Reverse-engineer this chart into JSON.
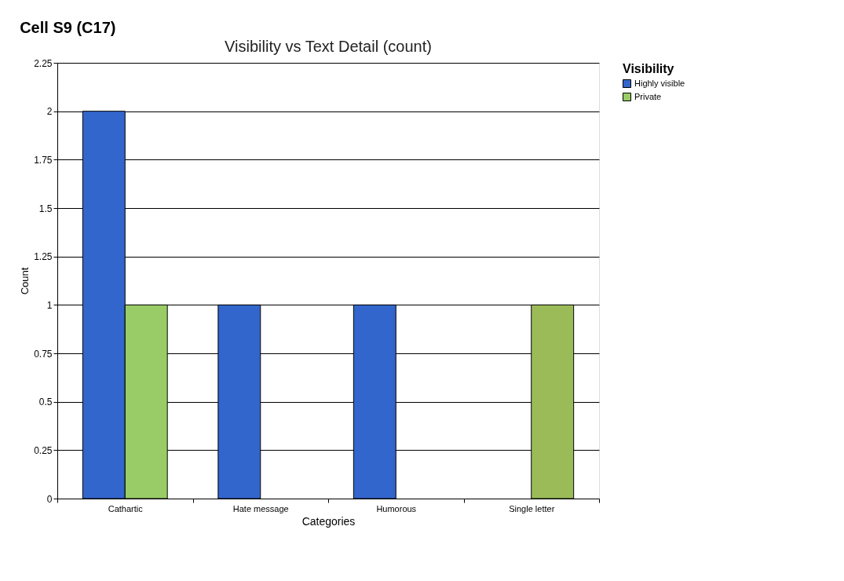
{
  "chart_data": {
    "type": "bar",
    "title": "Cell  S9 (C17)",
    "subtitle": "Visibility vs Text Detail (count)",
    "xlabel": "Categories",
    "ylabel": "Count",
    "legend_title": "Visibility",
    "categories": [
      "Cathartic",
      "Hate message",
      "Humorous",
      "Single letter"
    ],
    "series": [
      {
        "name": "Highly visible",
        "color": "#3366cc",
        "values": [
          2,
          1,
          1,
          null
        ]
      },
      {
        "name": "Private",
        "color": "#99cc66",
        "colors": [
          "#99cc66",
          null,
          null,
          "#9bbb59"
        ],
        "values": [
          1,
          null,
          null,
          1
        ]
      }
    ],
    "ylim": [
      0,
      2.25
    ],
    "yticks": [
      0,
      0.25,
      0.5,
      0.75,
      1,
      1.25,
      1.5,
      1.75,
      2,
      2.25
    ],
    "grid": "y",
    "legend": "top right"
  }
}
